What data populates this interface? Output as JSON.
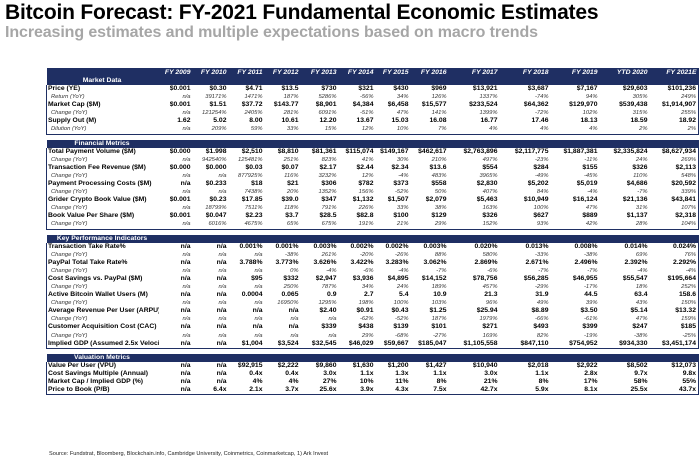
{
  "title": "Bitcoin Forecast: FY-2021 Fundamental Economic Estimates",
  "subtitle": "Increasing estimates and multiple expectations based on macro trends",
  "columns": [
    "FY 2009",
    "FY 2010",
    "FY 2011",
    "FY 2012",
    "FY 2013",
    "FY 2014",
    "FY 2015",
    "FY 2016",
    "FY 2017",
    "FY 2018",
    "FY 2019",
    "YTD 2020",
    "FY 2021E"
  ],
  "sections": [
    {
      "title": "Market Data",
      "rows": [
        {
          "label": "Price (YE)",
          "kind": "main",
          "values": [
            "$0.001",
            "$0.30",
            "$4.71",
            "$13.5",
            "$730",
            "$321",
            "$430",
            "$969",
            "$13,921",
            "$3,687",
            "$7,167",
            "$29,603",
            "$101,236"
          ]
        },
        {
          "label": "Return (YoY)",
          "kind": "sub",
          "values": [
            "n/a",
            "39171%",
            "1471%",
            "187%",
            "5286%",
            "-56%",
            "34%",
            "126%",
            "1337%",
            "-74%",
            "94%",
            "305%",
            "249%"
          ]
        },
        {
          "label": "Market Cap ($M)",
          "kind": "main",
          "values": [
            "$0.001",
            "$1.51",
            "$37.72",
            "$143.77",
            "$8,901",
            "$4,384",
            "$6,458",
            "$15,577",
            "$233,524",
            "$64,362",
            "$129,970",
            "$539,438",
            "$1,914,907"
          ]
        },
        {
          "label": "Change (YoY)",
          "kind": "sub",
          "values": [
            "n/a",
            "121254%",
            "2405%",
            "281%",
            "6091%",
            "-51%",
            "47%",
            "141%",
            "1399%",
            "-72%",
            "102%",
            "315%",
            "255%"
          ]
        },
        {
          "label": "Supply Out (M)",
          "kind": "main",
          "values": [
            "1.62",
            "5.02",
            "8.00",
            "10.61",
            "12.20",
            "13.67",
            "15.03",
            "16.08",
            "16.77",
            "17.46",
            "18.13",
            "18.59",
            "18.92"
          ]
        },
        {
          "label": "Dilution (YoY)",
          "kind": "sub",
          "values": [
            "n/a",
            "209%",
            "59%",
            "33%",
            "15%",
            "12%",
            "10%",
            "7%",
            "4%",
            "4%",
            "4%",
            "2%",
            "2%"
          ]
        }
      ]
    },
    {
      "title": "Financial Metrics",
      "rows": [
        {
          "label": "Total Payment Volume ($M)",
          "kind": "main",
          "values": [
            "$0.000",
            "$1.998",
            "$2,510",
            "$8,810",
            "$81,361",
            "$115,074",
            "$149,167",
            "$462,617",
            "$2,763,896",
            "$2,117,775",
            "$1,887,381",
            "$2,335,824",
            "$8,627,934"
          ]
        },
        {
          "label": "Change (YoY)",
          "kind": "sub",
          "values": [
            "n/a",
            "942540%",
            "125481%",
            "251%",
            "823%",
            "41%",
            "30%",
            "210%",
            "497%",
            "-23%",
            "-11%",
            "24%",
            "269%"
          ]
        },
        {
          "label": "Transaction Fee Revenue ($M)",
          "kind": "main",
          "values": [
            "$0.000",
            "$0.000",
            "$0.03",
            "$0.07",
            "$2.17",
            "$2.44",
            "$2.34",
            "$13.6",
            "$554",
            "$284",
            "$155",
            "$326",
            "$2,113"
          ]
        },
        {
          "label": "Change (YoY)",
          "kind": "sub",
          "values": [
            "n/a",
            "n/a",
            "877925%",
            "116%",
            "3232%",
            "12%",
            "-4%",
            "483%",
            "3965%",
            "-49%",
            "-45%",
            "110%",
            "548%"
          ]
        },
        {
          "label": "Payment Processing Costs ($M)",
          "kind": "main",
          "values": [
            "n/a",
            "$0.233",
            "$18",
            "$21",
            "$306",
            "$782",
            "$373",
            "$558",
            "$2,830",
            "$5,202",
            "$5,019",
            "$4,686",
            "$20,592"
          ]
        },
        {
          "label": "Change (YoY)",
          "kind": "sub",
          "values": [
            "n/a",
            "n/a",
            "7438%",
            "20%",
            "1352%",
            "156%",
            "-52%",
            "50%",
            "407%",
            "84%",
            "-4%",
            "-7%",
            "339%"
          ]
        },
        {
          "label": "Grider Crypto Book Value ($M)",
          "kind": "main",
          "values": [
            "$0.001",
            "$0.23",
            "$17.85",
            "$39.0",
            "$347",
            "$1,132",
            "$1,507",
            "$2,079",
            "$5,463",
            "$10,949",
            "$16,124",
            "$21,136",
            "$43,841"
          ]
        },
        {
          "label": "Change (YoY)",
          "kind": "sub",
          "values": [
            "n/a",
            "18799%",
            "7511%",
            "118%",
            "791%",
            "226%",
            "33%",
            "38%",
            "163%",
            "100%",
            "47%",
            "31%",
            "107%"
          ]
        },
        {
          "label": "Book Value Per Share ($M)",
          "kind": "main",
          "values": [
            "$0.001",
            "$0.047",
            "$2.23",
            "$3.7",
            "$28.5",
            "$82.8",
            "$100",
            "$129",
            "$326",
            "$627",
            "$889",
            "$1,137",
            "$2,318"
          ]
        },
        {
          "label": "Change (YoY)",
          "kind": "sub",
          "values": [
            "n/a",
            "6016%",
            "4675%",
            "65%",
            "675%",
            "191%",
            "21%",
            "29%",
            "152%",
            "93%",
            "42%",
            "28%",
            "104%"
          ]
        }
      ]
    },
    {
      "title": "Key Performance Indicators",
      "rows": [
        {
          "label": "Transaction Take Rate%",
          "kind": "main",
          "values": [
            "n/a",
            "n/a",
            "0.001%",
            "0.001%",
            "0.003%",
            "0.002%",
            "0.002%",
            "0.003%",
            "0.020%",
            "0.013%",
            "0.008%",
            "0.014%",
            "0.024%"
          ]
        },
        {
          "label": "Change (YoY)",
          "kind": "sub",
          "values": [
            "n/a",
            "n/a",
            "n/a",
            "-38%",
            "261%",
            "-20%",
            "-26%",
            "88%",
            "580%",
            "-33%",
            "-38%",
            "69%",
            "76%"
          ]
        },
        {
          "label": "PayPal Total Take Rate%",
          "kind": "main",
          "values": [
            "n/a",
            "n/a",
            "3.788%",
            "3.773%",
            "3.626%",
            "3.422%",
            "3.283%",
            "3.062%",
            "2.869%",
            "2.671%",
            "2.496%",
            "2.392%",
            "2.292%"
          ]
        },
        {
          "label": "Change (YoY)",
          "kind": "sub",
          "values": [
            "n/a",
            "n/a",
            "n/a",
            "0%",
            "-4%",
            "-6%",
            "-4%",
            "-7%",
            "-6%",
            "-7%",
            "-7%",
            "-4%",
            "-4%"
          ]
        },
        {
          "label": "Cost Savings vs. PayPal ($M)",
          "kind": "main",
          "values": [
            "n/a",
            "n/a",
            "$95",
            "$332",
            "$2,947",
            "$3,936",
            "$4,895",
            "$14,152",
            "$78,756",
            "$56,285",
            "$46,955",
            "$55,547",
            "$195,664"
          ]
        },
        {
          "label": "Change (YoY)",
          "kind": "sub",
          "values": [
            "n/a",
            "n/a",
            "n/a",
            "250%",
            "787%",
            "34%",
            "24%",
            "189%",
            "457%",
            "-29%",
            "-17%",
            "18%",
            "252%"
          ]
        },
        {
          "label": "Active Bitcoin Wallet Users (M)",
          "kind": "main",
          "values": [
            "n/a",
            "n/a",
            "0.0004",
            "0.065",
            "0.9",
            "2.7",
            "5.4",
            "10.9",
            "21.3",
            "31.9",
            "44.5",
            "63.4",
            "158.6"
          ]
        },
        {
          "label": "Change (YoY)",
          "kind": "sub",
          "values": [
            "n/a",
            "n/a",
            "n/a",
            "16950%",
            "1295%",
            "198%",
            "100%",
            "103%",
            "96%",
            "49%",
            "39%",
            "43%",
            "150%"
          ]
        },
        {
          "label": "Average Revenue Per User (ARPU)",
          "kind": "main",
          "values": [
            "n/a",
            "n/a",
            "n/a",
            "n/a",
            "$2.40",
            "$0.91",
            "$0.43",
            "$1.25",
            "$25.94",
            "$8.89",
            "$3.50",
            "$5.14",
            "$13.32"
          ]
        },
        {
          "label": "Change (YoY)",
          "kind": "sub",
          "values": [
            "n/a",
            "n/a",
            "n/a",
            "n/a",
            "n/a",
            "-62%",
            "-52%",
            "187%",
            "1979%",
            "-66%",
            "-61%",
            "47%",
            "159%"
          ]
        },
        {
          "label": "Customer Acquisition Cost (CAC)",
          "kind": "main",
          "values": [
            "n/a",
            "n/a",
            "n/a",
            "n/a",
            "$339",
            "$438",
            "$139",
            "$101",
            "$271",
            "$493",
            "$399",
            "$247",
            "$185"
          ]
        },
        {
          "label": "Change (YoY)",
          "kind": "sub",
          "values": [
            "n/a",
            "n/a",
            "n/a",
            "n/a",
            "n/a",
            "29%",
            "-68%",
            "-27%",
            "169%",
            "82%",
            "-19%",
            "-38%",
            "-25%"
          ]
        },
        {
          "label": "Implied GDP (Assumed 2.5x Velocity)",
          "kind": "main",
          "values": [
            "n/a",
            "n/a",
            "$1,004",
            "$3,524",
            "$32,545",
            "$46,029",
            "$59,667",
            "$185,047",
            "$1,105,558",
            "$847,110",
            "$754,952",
            "$934,330",
            "$3,451,174"
          ]
        }
      ]
    },
    {
      "title": "Valuation Metrics",
      "rows": [
        {
          "label": "Value Per User (VPU)",
          "kind": "main",
          "values": [
            "n/a",
            "n/a",
            "$92,915",
            "$2,222",
            "$9,860",
            "$1,630",
            "$1,200",
            "$1,427",
            "$10,940",
            "$2,018",
            "$2,922",
            "$8,502",
            "$12,073"
          ]
        },
        {
          "label": "Cost Savings Multiple (Annual)",
          "kind": "main",
          "values": [
            "n/a",
            "n/a",
            "0.4x",
            "0.4x",
            "3.0x",
            "1.1x",
            "1.3x",
            "1.1x",
            "3.0x",
            "1.1x",
            "2.8x",
            "9.7x",
            "9.8x"
          ]
        },
        {
          "label": "Market Cap / Implied GDP (%)",
          "kind": "main",
          "values": [
            "n/a",
            "n/a",
            "4%",
            "4%",
            "27%",
            "10%",
            "11%",
            "8%",
            "21%",
            "8%",
            "17%",
            "58%",
            "55%"
          ]
        },
        {
          "label": "Price to Book (P/B)",
          "kind": "main",
          "values": [
            "n/a",
            "6.4x",
            "2.1x",
            "3.7x",
            "25.6x",
            "3.9x",
            "4.3x",
            "7.5x",
            "42.7x",
            "5.9x",
            "8.1x",
            "25.5x",
            "43.7x"
          ]
        }
      ]
    }
  ],
  "source": "Source: Fundstrat, Bloomberg, Blockchain.info, Cambridge University, Coinmetrics, Coinmarketcap, 1) Ark Invest",
  "colors": {
    "header_bg": "#1f2f63",
    "subtitle": "#a6a6a6"
  }
}
